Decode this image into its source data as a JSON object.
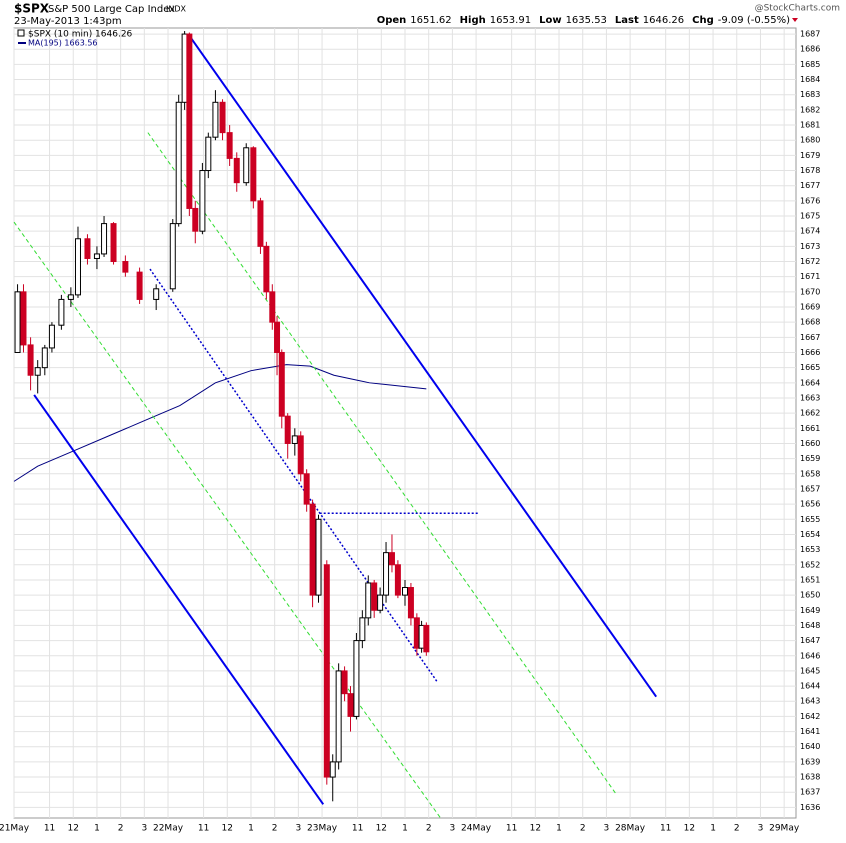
{
  "chart_data": {
    "type": "candlestick",
    "symbol": "$SPX",
    "title": "S&P 500 Large Cap Index",
    "exchange": "INDX",
    "subtitle": "23-May-2013 1:43pm",
    "source": "@StockCharts.com",
    "quote": [
      {
        "label": "Open",
        "value": 1651.62
      },
      {
        "label": "High",
        "value": 1653.91
      },
      {
        "label": "Low",
        "value": 1635.53
      },
      {
        "label": "Last",
        "value": 1646.26
      },
      {
        "label": "Chg",
        "value": "-9.09 (-0.55%)"
      }
    ],
    "xlim": [
      0,
      33
    ],
    "ylim": [
      1635.3,
      1687.4
    ],
    "grid": true,
    "xticks": [
      {
        "value": 0,
        "label": "21May"
      },
      {
        "value": 1.5,
        "label": "11"
      },
      {
        "value": 2.5,
        "label": "12"
      },
      {
        "value": 3.5,
        "label": "1"
      },
      {
        "value": 4.5,
        "label": "2"
      },
      {
        "value": 5.5,
        "label": "3"
      },
      {
        "value": 6.5,
        "label": "22May"
      },
      {
        "value": 8,
        "label": "11"
      },
      {
        "value": 9,
        "label": "12"
      },
      {
        "value": 10,
        "label": "1"
      },
      {
        "value": 11,
        "label": "2"
      },
      {
        "value": 12,
        "label": "3"
      },
      {
        "value": 13,
        "label": "23May"
      },
      {
        "value": 14.5,
        "label": "11"
      },
      {
        "value": 15.5,
        "label": "12"
      },
      {
        "value": 16.5,
        "label": "1"
      },
      {
        "value": 17.5,
        "label": "2"
      },
      {
        "value": 18.5,
        "label": "3"
      },
      {
        "value": 19.5,
        "label": "24May"
      },
      {
        "value": 21,
        "label": "11"
      },
      {
        "value": 22,
        "label": "12"
      },
      {
        "value": 23,
        "label": "1"
      },
      {
        "value": 24,
        "label": "2"
      },
      {
        "value": 25,
        "label": "3"
      },
      {
        "value": 26,
        "label": "28May"
      },
      {
        "value": 27.5,
        "label": "11"
      },
      {
        "value": 28.5,
        "label": "12"
      },
      {
        "value": 29.5,
        "label": "1"
      },
      {
        "value": 30.5,
        "label": "2"
      },
      {
        "value": 31.5,
        "label": "3"
      },
      {
        "value": 32.5,
        "label": "29May"
      }
    ],
    "yticks": [
      1636,
      1637,
      1638,
      1639,
      1640,
      1641,
      1642,
      1643,
      1644,
      1645,
      1646,
      1647,
      1648,
      1649,
      1650,
      1651,
      1652,
      1653,
      1654,
      1655,
      1656,
      1657,
      1658,
      1659,
      1660,
      1661,
      1662,
      1663,
      1664,
      1665,
      1666,
      1667,
      1668,
      1669,
      1670,
      1671,
      1672,
      1673,
      1674,
      1675,
      1676,
      1677,
      1678,
      1679,
      1680,
      1681,
      1682,
      1683,
      1684,
      1685,
      1686,
      1687
    ],
    "candles": {
      "name": "$SPX (10 min) 1646.26",
      "up_color": "#000000",
      "down_color": "#cc0022",
      "x": [
        0.15,
        0.4,
        0.7,
        1.0,
        1.3,
        1.6,
        2.0,
        2.4,
        2.7,
        3.1,
        3.5,
        3.8,
        4.2,
        4.7,
        5.3,
        6.0,
        6.7,
        6.95,
        7.2,
        7.4,
        7.65,
        7.95,
        8.2,
        8.5,
        8.8,
        9.1,
        9.4,
        9.8,
        10.1,
        10.4,
        10.65,
        10.9,
        11.1,
        11.3,
        11.55,
        11.85,
        12.1,
        12.35,
        12.6,
        12.85,
        13.2,
        13.45,
        13.7,
        13.95,
        14.2,
        14.45,
        14.7,
        14.95,
        15.2,
        15.45,
        15.7,
        15.95,
        16.2,
        16.5,
        16.75,
        17.0,
        17.2,
        17.4
      ],
      "open": [
        1666,
        1670,
        1666.5,
        1664.5,
        1665,
        1666.3,
        1667.8,
        1669.5,
        1669.8,
        1673.5,
        1672.2,
        1672.5,
        1674.5,
        1672,
        1671.3,
        1669.5,
        1670.2,
        1674.5,
        1682.5,
        1687,
        1675.5,
        1674,
        1678,
        1680.2,
        1682.5,
        1680.5,
        1678.8,
        1677.2,
        1679.5,
        1676,
        1673,
        1670,
        1668,
        1666,
        1661.8,
        1660,
        1660.5,
        1658,
        1656,
        1650,
        1652,
        1638,
        1639,
        1645,
        1643.5,
        1642,
        1647,
        1648.5,
        1650.8,
        1649,
        1650,
        1652.8,
        1652,
        1650,
        1650.5,
        1648.5,
        1646.5,
        1648
      ],
      "high": [
        1670.5,
        1670.5,
        1667,
        1665.5,
        1666.5,
        1668,
        1669.8,
        1670.3,
        1674.3,
        1673.8,
        1673,
        1675,
        1674.6,
        1672.4,
        1671.6,
        1670.5,
        1674.8,
        1683,
        1687.2,
        1687.1,
        1676,
        1678.5,
        1680.5,
        1683.3,
        1682.7,
        1681,
        1679.2,
        1679.8,
        1679.6,
        1676.2,
        1673.3,
        1670.5,
        1668.4,
        1666.2,
        1662,
        1661,
        1660.8,
        1658.3,
        1656.3,
        1655.3,
        1652.3,
        1639.5,
        1645.5,
        1645.3,
        1644,
        1647.5,
        1649,
        1651.3,
        1651,
        1650.5,
        1653.5,
        1654,
        1652.3,
        1651,
        1650.8,
        1648.8,
        1648.3,
        1648.2
      ],
      "low": [
        1666,
        1666,
        1663.5,
        1663.3,
        1664.5,
        1666,
        1667.5,
        1669,
        1669.6,
        1671.8,
        1671.5,
        1672.3,
        1671.8,
        1671,
        1669.2,
        1668.8,
        1670,
        1674.3,
        1682,
        1675,
        1673.2,
        1673.8,
        1677.5,
        1680,
        1680,
        1678.3,
        1676.6,
        1677,
        1675.5,
        1672.5,
        1669.5,
        1667.5,
        1664.5,
        1661,
        1659,
        1659.2,
        1657.5,
        1655.5,
        1649.2,
        1649.5,
        1637.5,
        1636.4,
        1638.5,
        1643,
        1641,
        1641.8,
        1646.5,
        1648,
        1648.5,
        1648.8,
        1649.5,
        1651.5,
        1649.8,
        1649.3,
        1648,
        1646,
        1646.2,
        1646
      ],
      "close": [
        1670,
        1666.5,
        1664.5,
        1665,
        1666.3,
        1667.8,
        1669.5,
        1669.8,
        1673.5,
        1672.2,
        1672.5,
        1674.5,
        1672,
        1671.3,
        1669.5,
        1670.2,
        1674.5,
        1682.5,
        1687,
        1675.5,
        1674,
        1678,
        1680.2,
        1682.5,
        1680.5,
        1678.8,
        1677.2,
        1679.5,
        1676,
        1673,
        1670,
        1668,
        1666,
        1661.8,
        1660,
        1660.5,
        1658,
        1656,
        1650,
        1655,
        1638,
        1639,
        1645,
        1643.5,
        1642,
        1647,
        1648.5,
        1650.8,
        1649,
        1650,
        1652.8,
        1652,
        1650,
        1650.5,
        1648.5,
        1646.5,
        1648,
        1646.26
      ]
    },
    "series": [
      {
        "name": "MA(195) 1663.56",
        "color": "#000080",
        "x": [
          0,
          1,
          2.5,
          4,
          5.5,
          7,
          8.5,
          10,
          11.5,
          12.5,
          13.5,
          15,
          17.4
        ],
        "values": [
          1657.5,
          1658.5,
          1659.5,
          1660.5,
          1661.5,
          1662.5,
          1664,
          1664.8,
          1665.2,
          1665.1,
          1664.5,
          1664,
          1663.6
        ]
      }
    ],
    "lines": [
      {
        "color": "#0000ee",
        "style": "solid",
        "x": [
          7.35,
          27.1
        ],
        "y": [
          1687,
          1643.3
        ]
      },
      {
        "color": "#0000ee",
        "style": "solid",
        "x": [
          0.85,
          13.05
        ],
        "y": [
          1663.2,
          1636.2
        ]
      },
      {
        "color": "#33dd33",
        "style": "dashed",
        "x": [
          0,
          18
        ],
        "y": [
          1674.6,
          1635.3
        ]
      },
      {
        "color": "#33dd33",
        "style": "dashed",
        "x": [
          5.65,
          25.4
        ],
        "y": [
          1680.5,
          1636.9
        ]
      },
      {
        "color": "#0000cc",
        "style": "dotted",
        "x": [
          5.74,
          17.85
        ],
        "y": [
          1671.5,
          1644.3
        ]
      },
      {
        "color": "#0000cc",
        "style": "dotted",
        "x": [
          12.9,
          19.6
        ],
        "y": [
          1655.4,
          1655.4
        ]
      }
    ]
  }
}
